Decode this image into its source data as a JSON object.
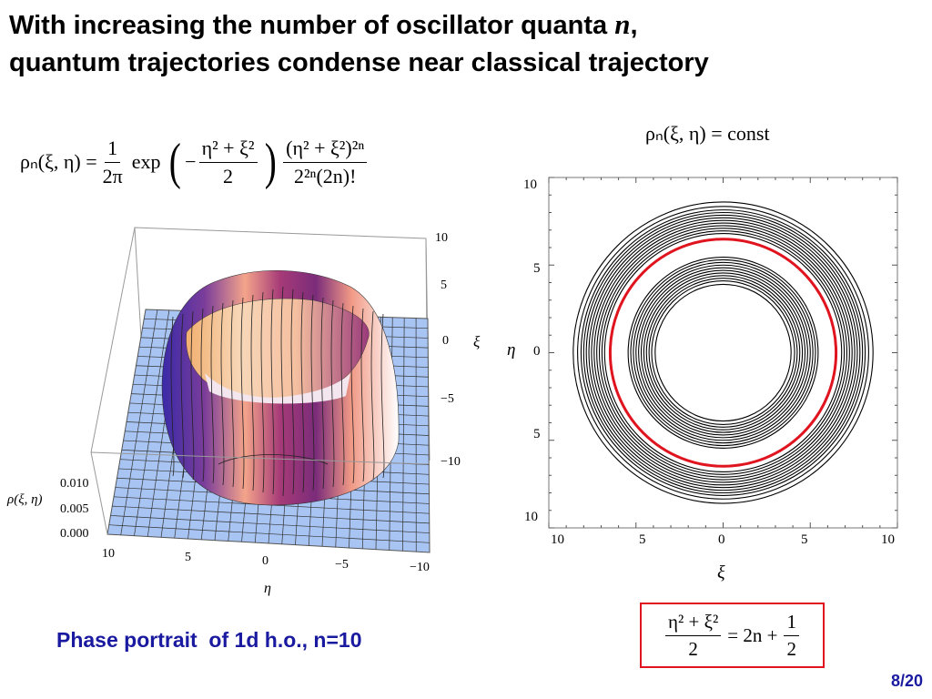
{
  "slide": {
    "title_line1_before": "With increasing the number of oscillator quanta ",
    "title_var": "n",
    "title_line1_after": ",",
    "title_line2": "quantum trajectories condense near classical trajectory",
    "caption": "Phase portrait  of 1d h.o., n=10",
    "page": "8/20"
  },
  "formula_density": {
    "lhs": "ρₙ(ξ, η) =",
    "f1_num": "1",
    "f1_den": "2π",
    "exp": "exp",
    "f2_num": "η² + ξ²",
    "f2_den": "2",
    "minus": "−",
    "f3_num": "(η² + ξ²)²ⁿ",
    "f3_den": "2²ⁿ(2n)!"
  },
  "formula_const": "ρₙ(ξ, η) = const",
  "formula_classical": {
    "lhs_num": "η² + ξ²",
    "lhs_den": "2",
    "mid": "= 2n +",
    "rhs_num": "1",
    "rhs_den": "2"
  },
  "plot3d": {
    "z_axis_label": "ρ(ξ, η)",
    "z_ticks": [
      "0.010",
      "0.005",
      "0.000"
    ],
    "xi_axis_label": "ξ",
    "xi_ticks": [
      "10",
      "5",
      "0",
      "−5",
      "−10"
    ],
    "eta_axis_label": "η",
    "eta_ticks": [
      "10",
      "5",
      "0",
      "−5",
      "−10"
    ]
  },
  "contour": {
    "x_label": "ξ",
    "y_label": "η",
    "x_ticks": [
      "10",
      "5",
      "0",
      "5",
      "10"
    ],
    "y_ticks": [
      "10",
      "5",
      "0",
      "5",
      "10"
    ],
    "highlight_color": "#e0141e"
  },
  "chart_data": {
    "type": "contour",
    "x_range": [
      -10,
      10
    ],
    "y_range": [
      -10,
      10
    ],
    "contour_radii": [
      3.9,
      4.1,
      4.25,
      4.4,
      4.55,
      4.7,
      4.85,
      5.0,
      5.15,
      5.3,
      5.45,
      6.8,
      6.95,
      7.1,
      7.25,
      7.4,
      7.55,
      7.7,
      7.85,
      8.0,
      8.15,
      8.35,
      8.6
    ],
    "classical_radius": 6.48
  }
}
